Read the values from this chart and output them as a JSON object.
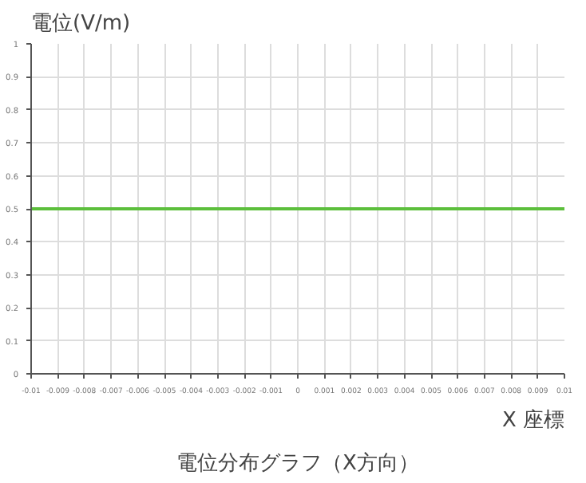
{
  "chart_data": {
    "type": "line",
    "title": "電位分布グラフ（X方向）",
    "xlabel": "X 座標",
    "ylabel": "電位(V/m)",
    "x": [
      -0.01,
      0.01
    ],
    "series": [
      {
        "color": "#5cbf3c",
        "values": [
          0.5,
          0.5
        ]
      }
    ],
    "xlim": [
      -0.01,
      0.01
    ],
    "ylim": [
      0,
      1
    ],
    "xticks": [
      -0.01,
      -0.009,
      -0.008,
      -0.007,
      -0.006,
      -0.005,
      -0.004,
      -0.003,
      -0.002,
      -0.001,
      0,
      0.001,
      0.002,
      0.003,
      0.004,
      0.005,
      0.006,
      0.007,
      0.008,
      0.009,
      0.01
    ],
    "yticks": [
      0,
      0.1,
      0.2,
      0.3,
      0.4,
      0.5,
      0.6,
      0.7,
      0.8,
      0.9,
      1
    ],
    "grid": true,
    "marker": "none",
    "line_style": "solid"
  }
}
